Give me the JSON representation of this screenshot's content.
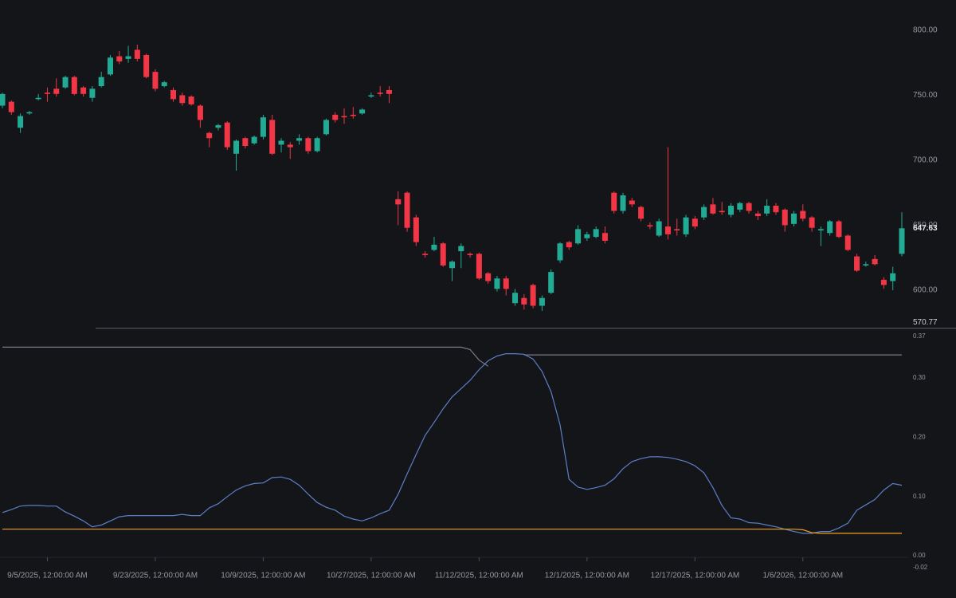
{
  "chart_data": [
    {
      "type": "candlestick",
      "up_color": "#22ab94",
      "down_color": "#f23645",
      "categories": [
        null,
        null,
        null,
        null,
        null,
        "9/5/2025, 12:00:00 AM",
        null,
        null,
        null,
        null,
        null,
        null,
        null,
        null,
        null,
        null,
        null,
        "9/23/2025, 12:00:00 AM",
        null,
        null,
        null,
        null,
        null,
        null,
        null,
        null,
        null,
        null,
        null,
        "10/9/2025, 12:00:00 AM",
        null,
        null,
        null,
        null,
        null,
        null,
        null,
        null,
        null,
        null,
        null,
        "10/27/2025, 12:00:00 AM",
        null,
        null,
        null,
        null,
        null,
        null,
        null,
        null,
        null,
        null,
        null,
        "11/12/2025, 12:00:00 AM",
        null,
        null,
        null,
        null,
        null,
        null,
        null,
        null,
        null,
        null,
        null,
        "12/1/2025, 12:00:00 AM",
        null,
        null,
        null,
        null,
        null,
        null,
        null,
        null,
        null,
        null,
        null,
        "12/17/2025, 12:00:00 AM",
        null,
        null,
        null,
        null,
        null,
        null,
        null,
        null,
        null,
        null,
        null,
        "1/6/2026, 12:00:00 AM",
        null,
        null,
        null,
        null,
        null,
        null,
        null,
        null,
        null,
        null,
        null
      ],
      "open": [
        742,
        745,
        725,
        736,
        747,
        752,
        755,
        756,
        764,
        756,
        748,
        757,
        766,
        780,
        778,
        785,
        781,
        768,
        757,
        754,
        750,
        749,
        742,
        721,
        725,
        729,
        705,
        717,
        713,
        718,
        731,
        712,
        712,
        715,
        717,
        707,
        720,
        735,
        734,
        735,
        736,
        749,
        752,
        754,
        670,
        675,
        656,
        628,
        631,
        636,
        617,
        630,
        628,
        628,
        613,
        601,
        609,
        590,
        594,
        604,
        588,
        598,
        623,
        637,
        636,
        640,
        641,
        644,
        675,
        661,
        669,
        664,
        650,
        642,
        649,
        647,
        643,
        655,
        656,
        666,
        661,
        658,
        662,
        667,
        659,
        659,
        665,
        662,
        651,
        661,
        656,
        646,
        644,
        653,
        642,
        626,
        619,
        624,
        608,
        607,
        628
      ],
      "high": [
        752,
        746,
        736,
        738,
        751,
        756,
        763,
        765,
        765,
        757,
        757,
        768,
        781,
        784,
        788,
        789,
        782,
        770,
        761,
        756,
        752,
        750,
        743,
        722,
        728,
        730,
        716,
        718,
        719,
        735,
        735,
        717,
        714,
        720,
        718,
        718,
        732,
        737,
        740,
        741,
        740,
        752,
        757,
        757,
        676,
        676,
        658,
        630,
        641,
        637,
        623,
        636,
        629,
        629,
        614,
        611,
        611,
        601,
        597,
        605,
        596,
        616,
        637,
        638,
        650,
        645,
        649,
        649,
        676,
        675,
        671,
        665,
        652,
        655,
        710,
        655,
        658,
        657,
        666,
        671,
        668,
        667,
        668,
        668,
        661,
        670,
        667,
        663,
        661,
        666,
        657,
        649,
        654,
        654,
        643,
        628,
        622,
        627,
        610,
        618,
        660
      ],
      "low": [
        740,
        735,
        721,
        735,
        746,
        745,
        749,
        755,
        750,
        749,
        745,
        756,
        765,
        774,
        775,
        776,
        763,
        753,
        756,
        745,
        742,
        742,
        725,
        710,
        723,
        708,
        692,
        709,
        712,
        716,
        704,
        706,
        701,
        712,
        705,
        706,
        719,
        729,
        728,
        732,
        735,
        748,
        749,
        744,
        650,
        645,
        634,
        625,
        630,
        618,
        607,
        617,
        625,
        608,
        605,
        599,
        596,
        588,
        585,
        586,
        584,
        597,
        621,
        631,
        635,
        638,
        640,
        636,
        659,
        659,
        664,
        653,
        647,
        641,
        639,
        642,
        641,
        647,
        654,
        658,
        658,
        656,
        660,
        659,
        654,
        657,
        658,
        645,
        649,
        653,
        645,
        634,
        642,
        640,
        630,
        614,
        618,
        619,
        601,
        600,
        626
      ],
      "close": [
        751,
        737,
        734,
        737,
        748,
        751,
        751,
        764,
        751,
        751,
        755,
        764,
        779,
        776,
        780,
        778,
        764,
        755,
        760,
        747,
        744,
        743,
        731,
        717,
        727,
        710,
        715,
        711,
        718,
        733,
        705,
        715,
        710,
        717,
        707,
        717,
        731,
        731,
        733,
        734,
        739,
        750,
        751,
        751,
        666,
        648,
        637,
        627,
        635,
        619,
        622,
        634,
        627,
        609,
        607,
        609,
        601,
        598,
        589,
        588,
        594,
        614,
        636,
        633,
        647,
        643,
        647,
        638,
        661,
        673,
        666,
        655,
        649,
        653,
        643,
        646,
        656,
        649,
        664,
        659,
        660,
        665,
        667,
        661,
        657,
        665,
        660,
        650,
        659,
        655,
        648,
        647,
        653,
        641,
        631,
        615,
        620,
        620,
        604,
        613,
        647.63
      ],
      "price_line": 570.77,
      "ylim": [
        565.6,
        823.3
      ],
      "yticks": [
        {
          "value": 800,
          "label": "800.00"
        },
        {
          "value": 750,
          "label": "750.00"
        },
        {
          "value": 700,
          "label": "700.00"
        },
        {
          "value": 650,
          "label": "650.00"
        },
        {
          "value": 600,
          "label": "600.00"
        }
      ]
    },
    {
      "type": "line",
      "series": [
        {
          "color": "#787b86",
          "values": [
            0.352,
            0.352,
            0.352,
            0.352,
            0.352,
            0.352,
            0.352,
            0.352,
            0.352,
            0.352,
            0.352,
            0.352,
            0.352,
            0.352,
            0.352,
            0.352,
            0.352,
            0.352,
            0.352,
            0.352,
            0.352,
            0.352,
            0.352,
            0.352,
            0.352,
            0.352,
            0.352,
            0.352,
            0.352,
            0.352,
            0.352,
            0.352,
            0.352,
            0.352,
            0.352,
            0.352,
            0.352,
            0.352,
            0.352,
            0.352,
            0.352,
            0.352,
            0.352,
            0.352,
            0.352,
            0.352,
            0.352,
            0.352,
            0.352,
            0.352,
            0.352,
            0.352,
            0.348,
            0.33,
            0.32,
            null,
            null,
            null,
            0.339,
            0.339,
            0.339,
            0.339,
            0.339,
            0.339,
            0.339,
            0.339,
            0.339,
            0.339,
            0.339,
            0.339,
            0.339,
            0.339,
            0.339,
            0.339,
            0.339,
            0.339,
            0.339,
            0.339,
            0.339,
            0.339,
            0.339,
            0.339,
            0.339,
            0.339,
            0.339,
            0.339,
            0.339,
            0.339,
            0.339,
            0.339,
            0.339,
            0.339,
            0.339,
            0.339,
            0.339,
            0.339,
            0.339,
            0.339,
            0.339,
            0.339,
            0.339
          ]
        },
        {
          "color": "#5b7fc7",
          "values": [
            0.073,
            0.078,
            0.084,
            0.085,
            0.085,
            0.084,
            0.084,
            0.074,
            0.067,
            0.059,
            0.049,
            0.052,
            0.059,
            0.066,
            0.068,
            0.068,
            0.068,
            0.068,
            0.068,
            0.068,
            0.07,
            0.068,
            0.068,
            0.081,
            0.088,
            0.1,
            0.111,
            0.118,
            0.122,
            0.123,
            0.132,
            0.133,
            0.129,
            0.119,
            0.104,
            0.09,
            0.082,
            0.077,
            0.067,
            0.062,
            0.059,
            0.064,
            0.071,
            0.077,
            0.104,
            0.138,
            0.171,
            0.203,
            0.225,
            0.248,
            0.268,
            0.282,
            0.296,
            0.314,
            0.329,
            0.337,
            0.341,
            0.341,
            0.34,
            0.332,
            0.311,
            0.277,
            0.221,
            0.129,
            0.116,
            0.112,
            0.115,
            0.119,
            0.13,
            0.147,
            0.159,
            0.164,
            0.167,
            0.167,
            0.166,
            0.163,
            0.159,
            0.152,
            0.14,
            0.115,
            0.085,
            0.064,
            0.062,
            0.056,
            0.055,
            0.052,
            0.049,
            0.045,
            0.041,
            0.038,
            0.038,
            0.041,
            0.041,
            0.047,
            0.055,
            0.077,
            0.086,
            0.095,
            0.111,
            0.122,
            0.119
          ]
        },
        {
          "color": "#f0a020",
          "values": [
            0.045,
            0.045,
            0.045,
            0.045,
            0.045,
            0.045,
            0.045,
            0.045,
            0.045,
            0.045,
            0.045,
            0.045,
            0.045,
            0.045,
            0.045,
            0.045,
            0.045,
            0.045,
            0.045,
            0.045,
            0.045,
            0.045,
            0.045,
            0.045,
            0.045,
            0.045,
            0.045,
            0.045,
            0.045,
            0.045,
            0.045,
            0.045,
            0.045,
            0.045,
            0.045,
            0.045,
            0.045,
            0.045,
            0.045,
            0.045,
            0.045,
            0.045,
            0.045,
            0.045,
            0.045,
            0.045,
            0.045,
            0.045,
            0.045,
            0.045,
            0.045,
            0.045,
            0.045,
            0.045,
            0.045,
            0.045,
            0.045,
            0.045,
            0.045,
            0.045,
            0.045,
            0.045,
            0.045,
            0.045,
            0.045,
            0.045,
            0.045,
            0.045,
            0.045,
            0.045,
            0.045,
            0.045,
            0.045,
            0.045,
            0.045,
            0.045,
            0.045,
            0.045,
            0.045,
            0.045,
            0.045,
            0.045,
            0.045,
            0.045,
            0.045,
            0.045,
            0.045,
            0.045,
            0.045,
            0.044,
            0.039,
            0.038,
            0.038,
            0.038,
            0.038,
            0.038,
            0.038,
            0.038,
            0.038,
            0.038,
            0.038
          ]
        }
      ],
      "ylim": [
        -0.02,
        0.37
      ],
      "yticks": [
        0.37,
        {
          "value": 0.3,
          "label": "0.30"
        },
        {
          "value": 0.2,
          "label": "0.20"
        },
        {
          "value": 0.1,
          "label": "0.10"
        },
        {
          "value": 0,
          "label": "0.00"
        },
        -0.02
      ]
    }
  ]
}
